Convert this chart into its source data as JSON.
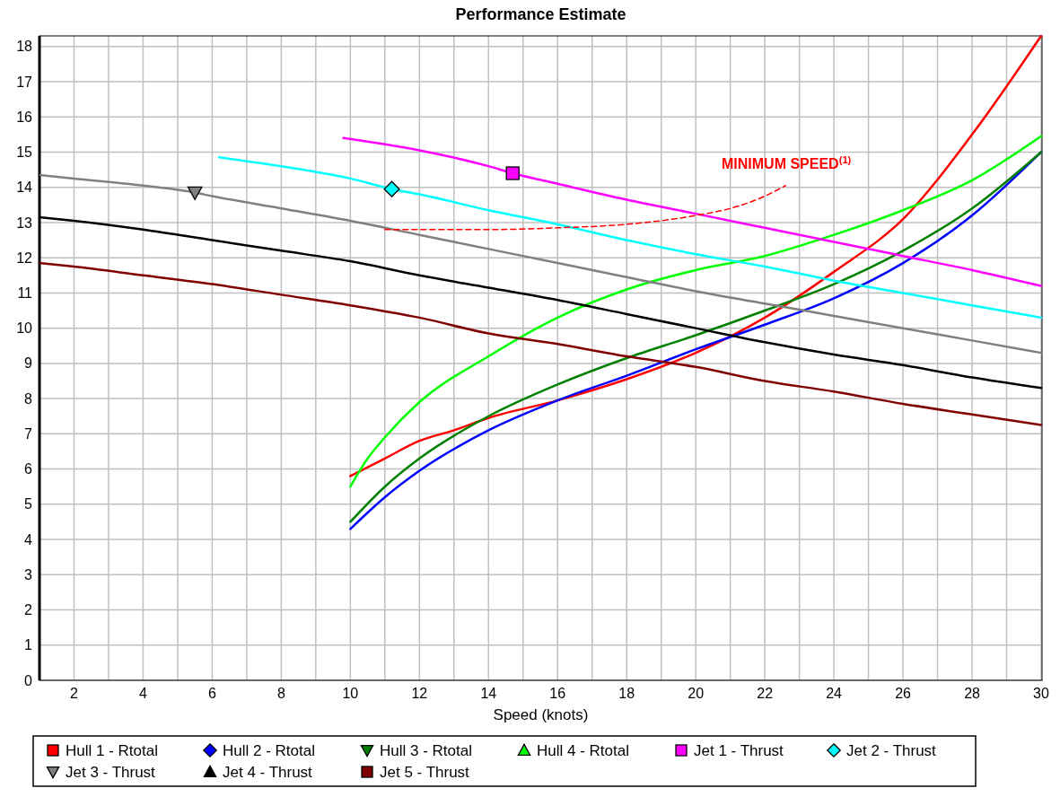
{
  "chart_data": {
    "type": "line",
    "title": "Performance Estimate",
    "xlabel": "Speed (knots)",
    "xlim": [
      1,
      30
    ],
    "ylim": [
      0,
      18.3
    ],
    "xticks": [
      {
        "value": 1,
        "label": null
      },
      2,
      {
        "value": 3,
        "label": null
      },
      4,
      {
        "value": 5,
        "label": null
      },
      6,
      {
        "value": 7,
        "label": null
      },
      8,
      {
        "value": 9,
        "label": null
      },
      10,
      {
        "value": 11,
        "label": null
      },
      12,
      {
        "value": 13,
        "label": null
      },
      14,
      {
        "value": 15,
        "label": null
      },
      16,
      {
        "value": 17,
        "label": null
      },
      18,
      {
        "value": 19,
        "label": null
      },
      20,
      {
        "value": 21,
        "label": null
      },
      22,
      {
        "value": 23,
        "label": null
      },
      24,
      {
        "value": 25,
        "label": null
      },
      26,
      {
        "value": 27,
        "label": null
      },
      28,
      {
        "value": 29,
        "label": null
      },
      30
    ],
    "yticks": [
      0,
      1,
      2,
      3,
      4,
      5,
      6,
      7,
      8,
      9,
      10,
      11,
      12,
      13,
      14,
      15,
      16,
      17,
      18
    ],
    "grid": true,
    "legend": "bottom",
    "annotations": [
      "MINIMUM SPEED$^{(1)}$"
    ],
    "series": [
      {
        "name": "Hull 1 - Rtotal",
        "color": "#ff0000",
        "x": [
          10,
          11,
          12,
          13,
          14,
          16,
          18,
          20,
          22,
          24,
          26,
          28,
          30
        ],
        "values": [
          5.8,
          6.3,
          6.8,
          7.1,
          7.45,
          7.95,
          8.55,
          9.3,
          10.3,
          11.6,
          13.1,
          15.5,
          18.3
        ]
      },
      {
        "name": "Hull 2 - Rtotal",
        "color": "#0000ff",
        "x": [
          10,
          11,
          12,
          14,
          16,
          18,
          20,
          22,
          24,
          26,
          28,
          30
        ],
        "values": [
          4.3,
          5.2,
          5.95,
          7.1,
          7.95,
          8.65,
          9.4,
          10.1,
          10.85,
          11.85,
          13.2,
          15.0
        ]
      },
      {
        "name": "Hull 3 - Rtotal",
        "color": "#008000",
        "x": [
          10,
          11,
          12,
          14,
          16,
          18,
          20,
          22,
          24,
          26,
          28,
          30
        ],
        "values": [
          4.5,
          5.5,
          6.3,
          7.5,
          8.4,
          9.15,
          9.8,
          10.5,
          11.25,
          12.2,
          13.4,
          15.0
        ]
      },
      {
        "name": "Hull 4 - Rtotal",
        "color": "#00ff00",
        "x": [
          10,
          10.5,
          11,
          12,
          14,
          16,
          18,
          20,
          22,
          24,
          26,
          28,
          30
        ],
        "values": [
          5.5,
          6.3,
          6.9,
          7.9,
          9.2,
          10.3,
          11.1,
          11.65,
          12.05,
          12.65,
          13.35,
          14.2,
          15.45
        ]
      },
      {
        "name": "Jet 1 - Thrust",
        "color": "#ff00ff",
        "x": [
          9.8,
          12,
          14,
          14.7,
          16,
          18,
          20,
          22,
          24,
          26,
          28,
          30
        ],
        "values": [
          15.4,
          15.05,
          14.6,
          14.4,
          14.1,
          13.65,
          13.25,
          12.85,
          12.45,
          12.05,
          11.65,
          11.2
        ]
      },
      {
        "name": "Jet 2 - Thrust",
        "color": "#00ffff",
        "x": [
          6.2,
          8,
          10,
          11.2,
          12,
          14,
          16,
          18,
          20,
          22,
          24,
          26,
          28,
          30
        ],
        "values": [
          14.85,
          14.6,
          14.25,
          13.95,
          13.8,
          13.35,
          12.95,
          12.5,
          12.1,
          11.75,
          11.35,
          11.0,
          10.65,
          10.3
        ]
      },
      {
        "name": "Jet 3 - Thrust",
        "color": "#808080",
        "x": [
          1,
          2,
          4,
          5.5,
          6,
          8,
          10,
          12,
          14,
          16,
          18,
          20,
          22,
          24,
          26,
          28,
          30
        ],
        "values": [
          14.35,
          14.25,
          14.05,
          13.85,
          13.75,
          13.4,
          13.05,
          12.65,
          12.25,
          11.85,
          11.45,
          11.05,
          10.7,
          10.35,
          10.0,
          9.65,
          9.3
        ]
      },
      {
        "name": "Jet 4 - Thrust",
        "color": "#000000",
        "x": [
          1,
          2,
          4,
          6,
          8,
          10,
          12,
          14,
          16,
          18,
          20,
          22,
          24,
          26,
          28,
          30
        ],
        "values": [
          13.15,
          13.05,
          12.8,
          12.5,
          12.2,
          11.9,
          11.5,
          11.15,
          10.8,
          10.4,
          10.0,
          9.6,
          9.25,
          8.95,
          8.6,
          8.3
        ]
      },
      {
        "name": "Jet 5 - Thrust",
        "color": "#800000",
        "x": [
          1,
          2,
          4,
          6,
          8,
          10,
          12,
          14,
          16,
          18,
          20,
          22,
          24,
          26,
          28,
          30
        ],
        "values": [
          11.85,
          11.75,
          11.5,
          11.25,
          10.95,
          10.65,
          10.3,
          9.85,
          9.55,
          9.2,
          8.9,
          8.5,
          8.2,
          7.85,
          7.55,
          7.25
        ]
      },
      {
        "color": "#ff0000",
        "line_style": "dashed",
        "x": [
          11,
          14,
          16,
          18,
          20,
          21,
          22,
          22.6
        ],
        "values": [
          12.8,
          12.8,
          12.85,
          12.95,
          13.2,
          13.4,
          13.75,
          14.05
        ]
      },
      {
        "type": "scatter",
        "color": "#ff00ff",
        "marker": "square",
        "x": [
          14.7
        ],
        "values": [
          14.4
        ]
      },
      {
        "type": "scatter",
        "color": "#00ffff",
        "marker": "diamond",
        "x": [
          11.2
        ],
        "values": [
          13.95
        ]
      },
      {
        "type": "scatter",
        "color": "#808080",
        "marker": "triangle-down",
        "x": [
          5.5
        ],
        "values": [
          13.85
        ]
      }
    ]
  }
}
